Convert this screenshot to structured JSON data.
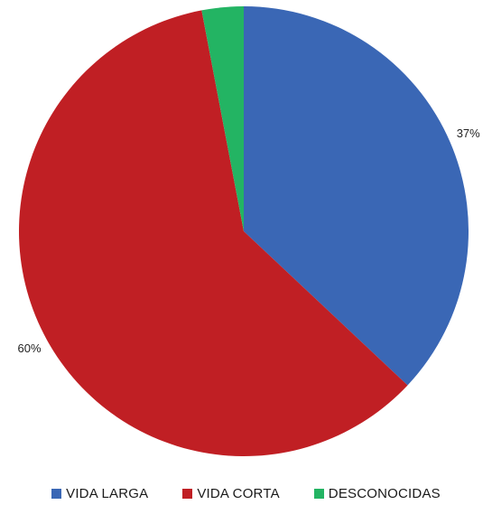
{
  "chart_data": {
    "type": "pie",
    "title": "",
    "slices": [
      {
        "name": "VIDA LARGA",
        "value": 37,
        "label": "37%",
        "color": "#3a67b5"
      },
      {
        "name": "VIDA CORTA",
        "value": 60,
        "label": "60%",
        "color": "#c01f24"
      },
      {
        "name": "DESCONOCIDAS",
        "value": 3,
        "label": "",
        "color": "#23b463"
      }
    ],
    "start_angle_deg": 0,
    "direction": "clockwise",
    "legend_position": "bottom"
  }
}
